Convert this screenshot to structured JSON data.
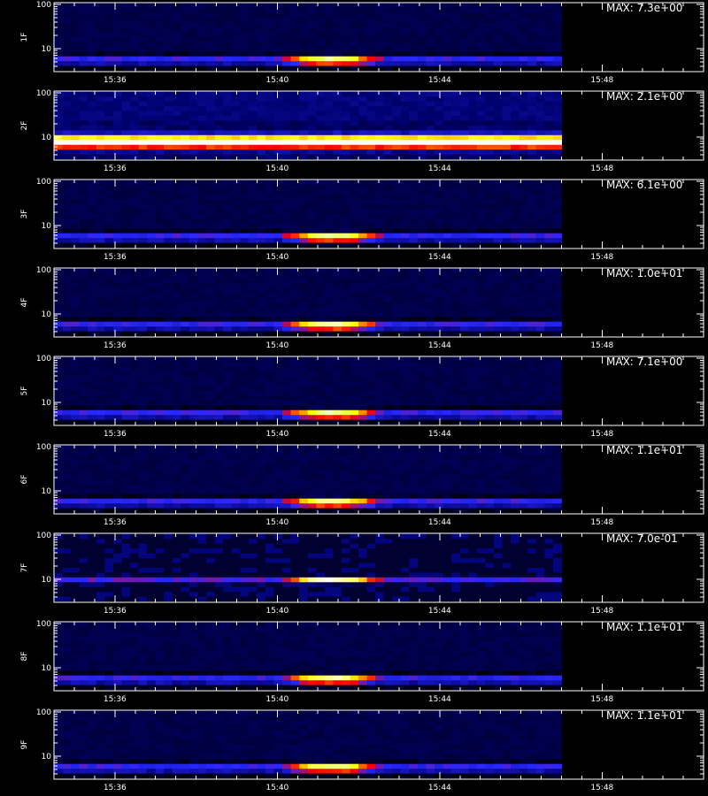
{
  "chart_data": {
    "type": "heatmap",
    "y_scale": "log",
    "ylim": [
      3,
      110
    ],
    "xlim": [
      "15:34:30",
      "15:50:30"
    ],
    "data_time_range": [
      "15:34:30",
      "15:47:00"
    ],
    "x_tick_labels": [
      "15:36",
      "15:40",
      "15:44",
      "15:48"
    ],
    "x_tick_times": [
      "15:36",
      "15:40",
      "15:44",
      "15:48"
    ],
    "y_tick_labels": [
      "100",
      "10"
    ],
    "y_tick_values": [
      100,
      10
    ],
    "colormap": [
      "#000000",
      "#0000ff",
      "#ff0000",
      "#ffff00",
      "#ffffff"
    ],
    "panels": [
      {
        "detector": "1F",
        "max_label": "MAX: 7.3e+00",
        "profile": "burst",
        "peak_time": "15:41:20",
        "energy_center": 5.5
      },
      {
        "detector": "2F",
        "max_label": "MAX: 2.1e+00",
        "profile": "band",
        "energy_center": 8
      },
      {
        "detector": "3F",
        "max_label": "MAX: 6.1e+00",
        "profile": "burst",
        "peak_time": "15:41:20",
        "energy_center": 5.5
      },
      {
        "detector": "4F",
        "max_label": "MAX: 1.0e+01",
        "profile": "burst",
        "peak_time": "15:41:20",
        "energy_center": 5.5
      },
      {
        "detector": "5F",
        "max_label": "MAX: 7.1e+00",
        "profile": "burst",
        "peak_time": "15:41:20",
        "energy_center": 5.5
      },
      {
        "detector": "6F",
        "max_label": "MAX: 1.1e+01",
        "profile": "burst",
        "peak_time": "15:41:20",
        "energy_center": 5.5
      },
      {
        "detector": "7F",
        "max_label": "MAX: 7.0e-01",
        "profile": "noisy",
        "peak_time": "15:41:20",
        "energy_center": 9.5
      },
      {
        "detector": "8F",
        "max_label": "MAX: 1.1e+01",
        "profile": "burst",
        "peak_time": "15:41:20",
        "energy_center": 5.5
      },
      {
        "detector": "9F",
        "max_label": "MAX: 1.1e+01",
        "profile": "burst",
        "peak_time": "15:41:20",
        "energy_center": 5.5
      }
    ]
  }
}
